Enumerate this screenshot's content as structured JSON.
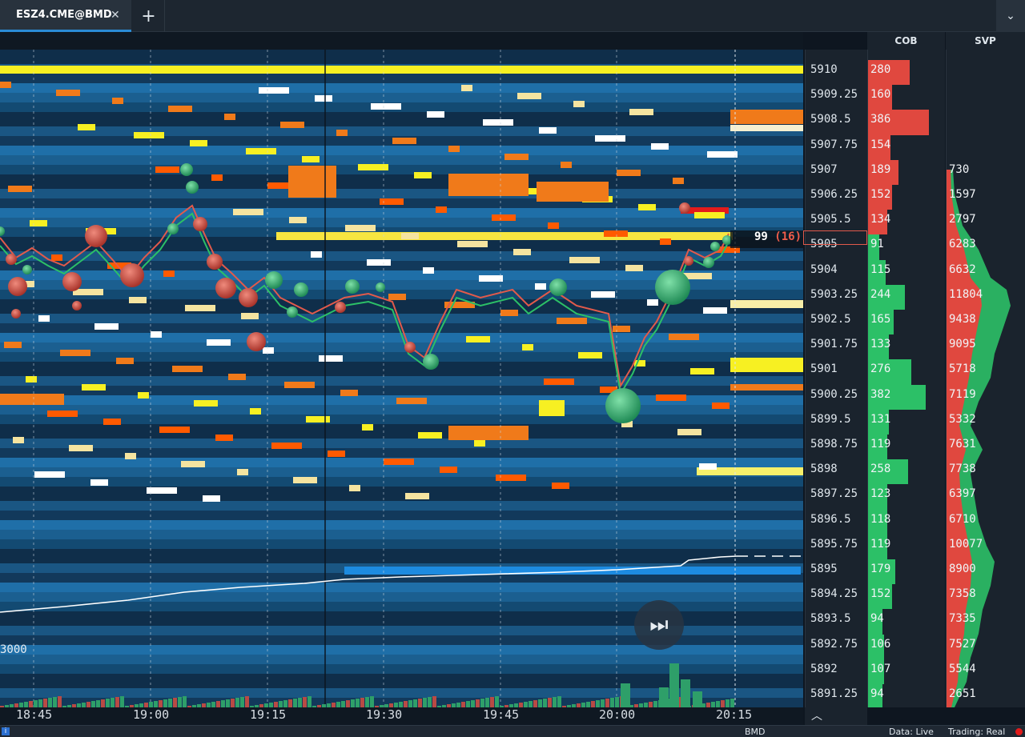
{
  "tabs": [
    {
      "label": "ESZ4.CME@BMD",
      "close_icon": "close-icon"
    }
  ],
  "add_tab_label": "+",
  "dropdown_icon": "chevron-down-icon",
  "columns": {
    "cob": "COB",
    "svp": "SVP"
  },
  "prices": [
    "5910",
    "5909.25",
    "5908.5",
    "5907.75",
    "5907",
    "5906.25",
    "5905.5",
    "5905",
    "5904",
    "5903.25",
    "5902.5",
    "5901.75",
    "5901",
    "5900.25",
    "5899.5",
    "5898.75",
    "5898",
    "5897.25",
    "5896.5",
    "5895.75",
    "5895",
    "5894.25",
    "5893.5",
    "5892.75",
    "5892",
    "5891.25"
  ],
  "cob": [
    {
      "v": "280",
      "side": "ask",
      "w": 52
    },
    {
      "v": "160",
      "side": "ask",
      "w": 30
    },
    {
      "v": "386",
      "side": "ask",
      "w": 76
    },
    {
      "v": "154",
      "side": "ask",
      "w": 28
    },
    {
      "v": "189",
      "side": "ask",
      "w": 38
    },
    {
      "v": "152",
      "side": "ask",
      "w": 30
    },
    {
      "v": "134",
      "side": "ask",
      "w": 24
    },
    {
      "v": "91",
      "side": "bid",
      "w": 14
    },
    {
      "v": "115",
      "side": "bid",
      "w": 22
    },
    {
      "v": "244",
      "side": "bid",
      "w": 46
    },
    {
      "v": "165",
      "side": "bid",
      "w": 32
    },
    {
      "v": "133",
      "side": "bid",
      "w": 26
    },
    {
      "v": "276",
      "side": "bid",
      "w": 54
    },
    {
      "v": "382",
      "side": "bid",
      "w": 72
    },
    {
      "v": "131",
      "side": "bid",
      "w": 26
    },
    {
      "v": "119",
      "side": "bid",
      "w": 24
    },
    {
      "v": "258",
      "side": "bid",
      "w": 50
    },
    {
      "v": "123",
      "side": "bid",
      "w": 24
    },
    {
      "v": "118",
      "side": "bid",
      "w": 24
    },
    {
      "v": "119",
      "side": "bid",
      "w": 24
    },
    {
      "v": "179",
      "side": "bid",
      "w": 34
    },
    {
      "v": "152",
      "side": "bid",
      "w": 30
    },
    {
      "v": "94",
      "side": "bid",
      "w": 18
    },
    {
      "v": "106",
      "side": "bid",
      "w": 20
    },
    {
      "v": "107",
      "side": "bid",
      "w": 20
    },
    {
      "v": "94",
      "side": "bid",
      "w": 18
    }
  ],
  "svp": [
    "",
    "",
    "",
    "",
    "730",
    "1597",
    "2797",
    "6283",
    "6632",
    "11804",
    "9438",
    "9095",
    "5718",
    "7119",
    "5332",
    "7631",
    "7738",
    "6397",
    "6710",
    "10077",
    "8900",
    "7358",
    "7335",
    "7527",
    "5544",
    "2651"
  ],
  "last_trade": {
    "price": "99",
    "size": "(16)"
  },
  "volume_scale_label": "3000",
  "time_ticks": [
    "18:45",
    "19:00",
    "19:15",
    "19:30",
    "19:45",
    "20:00",
    "20:15"
  ],
  "status": {
    "feed": "BMD",
    "data": "Data: Live",
    "trading": "Trading: Real",
    "info_icon": "i"
  },
  "colors": {
    "ask": "#e0483f",
    "bid": "#2cc067",
    "bg": "#123450",
    "accent": "#2b8bd6"
  }
}
